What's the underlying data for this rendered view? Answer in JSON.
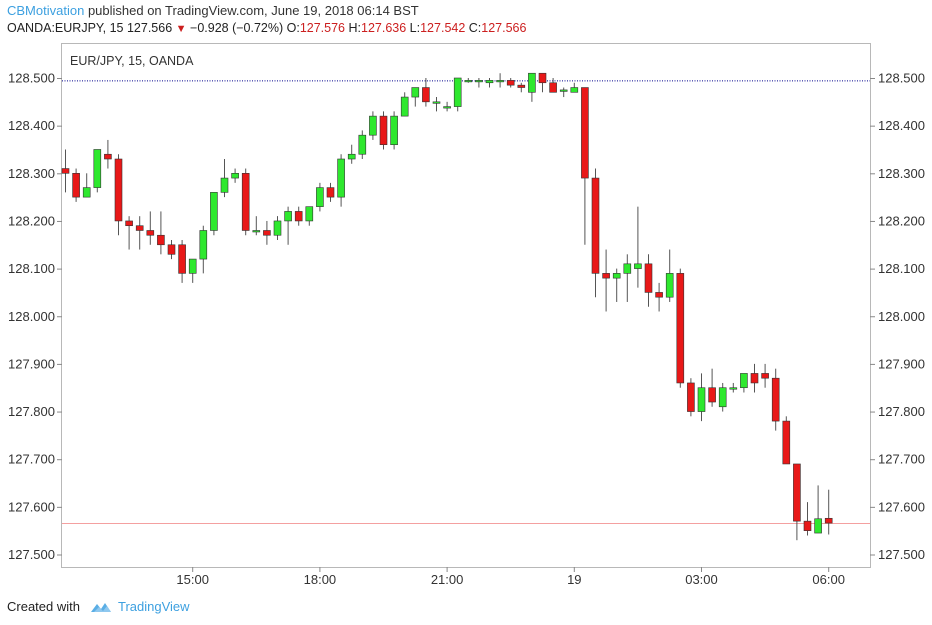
{
  "header": {
    "author": "CBMotivation",
    "published_text": "published on TradingView.com, June 19, 2018 06:14 BST",
    "symbol": "OANDA:EURJPY, 15",
    "last": "127.566",
    "change": "−0.928 (−0.72%)",
    "o_label": "O:",
    "o_value": "127.576",
    "h_label": "H:",
    "h_value": "127.636",
    "l_label": "L:",
    "l_value": "127.542",
    "c_label": "C:",
    "c_value": "127.566"
  },
  "footer": {
    "created_with": "Created with",
    "brand": "TradingView"
  },
  "colors": {
    "up": "#2ee82e",
    "down": "#e81818",
    "wick": "#555555",
    "ref_line": "#00008b",
    "last_line": "#f4a0a0",
    "axis_text": "#333333",
    "brand": "#3da0e0"
  },
  "chart_data": {
    "type": "candlestick",
    "title": "EUR/JPY, 15, OANDA",
    "ylim": [
      127.48,
      128.56
    ],
    "y_ticks": [
      128.5,
      128.4,
      128.3,
      128.2,
      128.1,
      128.0,
      127.9,
      127.8,
      127.7,
      127.6,
      127.5
    ],
    "y_tick_labels": [
      "128.500",
      "128.400",
      "128.300",
      "128.200",
      "128.100",
      "128.000",
      "127.900",
      "127.800",
      "127.700",
      "127.600",
      "127.500"
    ],
    "x_ticks": [
      {
        "index": 12,
        "label": "15:00"
      },
      {
        "index": 24,
        "label": "18:00"
      },
      {
        "index": 36,
        "label": "21:00"
      },
      {
        "index": 48,
        "label": "19"
      },
      {
        "index": 60,
        "label": "03:00"
      },
      {
        "index": 72,
        "label": "06:00"
      }
    ],
    "reference_line": 128.495,
    "last_price": 127.566,
    "candles": [
      {
        "o": 128.31,
        "h": 128.35,
        "l": 128.26,
        "c": 128.3
      },
      {
        "o": 128.3,
        "h": 128.31,
        "l": 128.24,
        "c": 128.25
      },
      {
        "o": 128.25,
        "h": 128.3,
        "l": 128.25,
        "c": 128.27
      },
      {
        "o": 128.27,
        "h": 128.35,
        "l": 128.26,
        "c": 128.35
      },
      {
        "o": 128.34,
        "h": 128.37,
        "l": 128.31,
        "c": 128.33
      },
      {
        "o": 128.33,
        "h": 128.34,
        "l": 128.17,
        "c": 128.2
      },
      {
        "o": 128.2,
        "h": 128.21,
        "l": 128.14,
        "c": 128.19
      },
      {
        "o": 128.19,
        "h": 128.21,
        "l": 128.14,
        "c": 128.18
      },
      {
        "o": 128.18,
        "h": 128.22,
        "l": 128.15,
        "c": 128.17
      },
      {
        "o": 128.17,
        "h": 128.22,
        "l": 128.13,
        "c": 128.15
      },
      {
        "o": 128.15,
        "h": 128.16,
        "l": 128.12,
        "c": 128.13
      },
      {
        "o": 128.15,
        "h": 128.16,
        "l": 128.07,
        "c": 128.09
      },
      {
        "o": 128.09,
        "h": 128.12,
        "l": 128.07,
        "c": 128.12
      },
      {
        "o": 128.12,
        "h": 128.19,
        "l": 128.09,
        "c": 128.18
      },
      {
        "o": 128.18,
        "h": 128.26,
        "l": 128.17,
        "c": 128.26
      },
      {
        "o": 128.26,
        "h": 128.33,
        "l": 128.25,
        "c": 128.29
      },
      {
        "o": 128.29,
        "h": 128.31,
        "l": 128.28,
        "c": 128.3
      },
      {
        "o": 128.3,
        "h": 128.31,
        "l": 128.17,
        "c": 128.18
      },
      {
        "o": 128.18,
        "h": 128.21,
        "l": 128.17,
        "c": 128.18
      },
      {
        "o": 128.18,
        "h": 128.2,
        "l": 128.15,
        "c": 128.17
      },
      {
        "o": 128.17,
        "h": 128.21,
        "l": 128.16,
        "c": 128.2
      },
      {
        "o": 128.2,
        "h": 128.23,
        "l": 128.15,
        "c": 128.22
      },
      {
        "o": 128.22,
        "h": 128.23,
        "l": 128.19,
        "c": 128.2
      },
      {
        "o": 128.2,
        "h": 128.23,
        "l": 128.19,
        "c": 128.23
      },
      {
        "o": 128.23,
        "h": 128.28,
        "l": 128.22,
        "c": 128.27
      },
      {
        "o": 128.27,
        "h": 128.28,
        "l": 128.24,
        "c": 128.25
      },
      {
        "o": 128.25,
        "h": 128.34,
        "l": 128.23,
        "c": 128.33
      },
      {
        "o": 128.33,
        "h": 128.36,
        "l": 128.32,
        "c": 128.34
      },
      {
        "o": 128.34,
        "h": 128.39,
        "l": 128.33,
        "c": 128.38
      },
      {
        "o": 128.38,
        "h": 128.43,
        "l": 128.37,
        "c": 128.42
      },
      {
        "o": 128.42,
        "h": 128.43,
        "l": 128.35,
        "c": 128.36
      },
      {
        "o": 128.36,
        "h": 128.43,
        "l": 128.35,
        "c": 128.42
      },
      {
        "o": 128.42,
        "h": 128.47,
        "l": 128.42,
        "c": 128.46
      },
      {
        "o": 128.46,
        "h": 128.48,
        "l": 128.44,
        "c": 128.48
      },
      {
        "o": 128.48,
        "h": 128.5,
        "l": 128.44,
        "c": 128.45
      },
      {
        "o": 128.45,
        "h": 128.46,
        "l": 128.43,
        "c": 128.45
      },
      {
        "o": 128.44,
        "h": 128.45,
        "l": 128.43,
        "c": 128.44
      },
      {
        "o": 128.44,
        "h": 128.5,
        "l": 128.43,
        "c": 128.5
      },
      {
        "o": 128.495,
        "h": 128.5,
        "l": 128.49,
        "c": 128.495
      },
      {
        "o": 128.495,
        "h": 128.5,
        "l": 128.48,
        "c": 128.495
      },
      {
        "o": 128.49,
        "h": 128.5,
        "l": 128.48,
        "c": 128.495
      },
      {
        "o": 128.495,
        "h": 128.51,
        "l": 128.48,
        "c": 128.495
      },
      {
        "o": 128.495,
        "h": 128.5,
        "l": 128.48,
        "c": 128.485
      },
      {
        "o": 128.485,
        "h": 128.49,
        "l": 128.47,
        "c": 128.48
      },
      {
        "o": 128.47,
        "h": 128.51,
        "l": 128.45,
        "c": 128.51
      },
      {
        "o": 128.51,
        "h": 128.51,
        "l": 128.47,
        "c": 128.49
      },
      {
        "o": 128.49,
        "h": 128.5,
        "l": 128.47,
        "c": 128.47
      },
      {
        "o": 128.475,
        "h": 128.48,
        "l": 128.46,
        "c": 128.475
      },
      {
        "o": 128.47,
        "h": 128.49,
        "l": 128.47,
        "c": 128.48
      },
      {
        "o": 128.48,
        "h": 128.48,
        "l": 128.15,
        "c": 128.29
      },
      {
        "o": 128.29,
        "h": 128.31,
        "l": 128.04,
        "c": 128.09
      },
      {
        "o": 128.09,
        "h": 128.14,
        "l": 128.01,
        "c": 128.08
      },
      {
        "o": 128.08,
        "h": 128.1,
        "l": 128.03,
        "c": 128.09
      },
      {
        "o": 128.09,
        "h": 128.13,
        "l": 128.03,
        "c": 128.11
      },
      {
        "o": 128.1,
        "h": 128.23,
        "l": 128.06,
        "c": 128.11
      },
      {
        "o": 128.11,
        "h": 128.13,
        "l": 128.02,
        "c": 128.05
      },
      {
        "o": 128.05,
        "h": 128.07,
        "l": 128.01,
        "c": 128.04
      },
      {
        "o": 128.04,
        "h": 128.14,
        "l": 128.03,
        "c": 128.09
      },
      {
        "o": 128.09,
        "h": 128.1,
        "l": 127.85,
        "c": 127.86
      },
      {
        "o": 127.86,
        "h": 127.87,
        "l": 127.79,
        "c": 127.8
      },
      {
        "o": 127.8,
        "h": 127.88,
        "l": 127.78,
        "c": 127.85
      },
      {
        "o": 127.85,
        "h": 127.89,
        "l": 127.81,
        "c": 127.82
      },
      {
        "o": 127.81,
        "h": 127.86,
        "l": 127.8,
        "c": 127.85
      },
      {
        "o": 127.85,
        "h": 127.86,
        "l": 127.84,
        "c": 127.85
      },
      {
        "o": 127.85,
        "h": 127.87,
        "l": 127.84,
        "c": 127.88
      },
      {
        "o": 127.88,
        "h": 127.9,
        "l": 127.84,
        "c": 127.86
      },
      {
        "o": 127.88,
        "h": 127.9,
        "l": 127.85,
        "c": 127.87
      },
      {
        "o": 127.87,
        "h": 127.89,
        "l": 127.76,
        "c": 127.78
      },
      {
        "o": 127.78,
        "h": 127.79,
        "l": 127.69,
        "c": 127.69
      },
      {
        "o": 127.69,
        "h": 127.69,
        "l": 127.53,
        "c": 127.57
      },
      {
        "o": 127.57,
        "h": 127.61,
        "l": 127.54,
        "c": 127.55
      },
      {
        "o": 127.545,
        "h": 127.645,
        "l": 127.545,
        "c": 127.575
      },
      {
        "o": 127.576,
        "h": 127.636,
        "l": 127.542,
        "c": 127.566
      }
    ]
  }
}
